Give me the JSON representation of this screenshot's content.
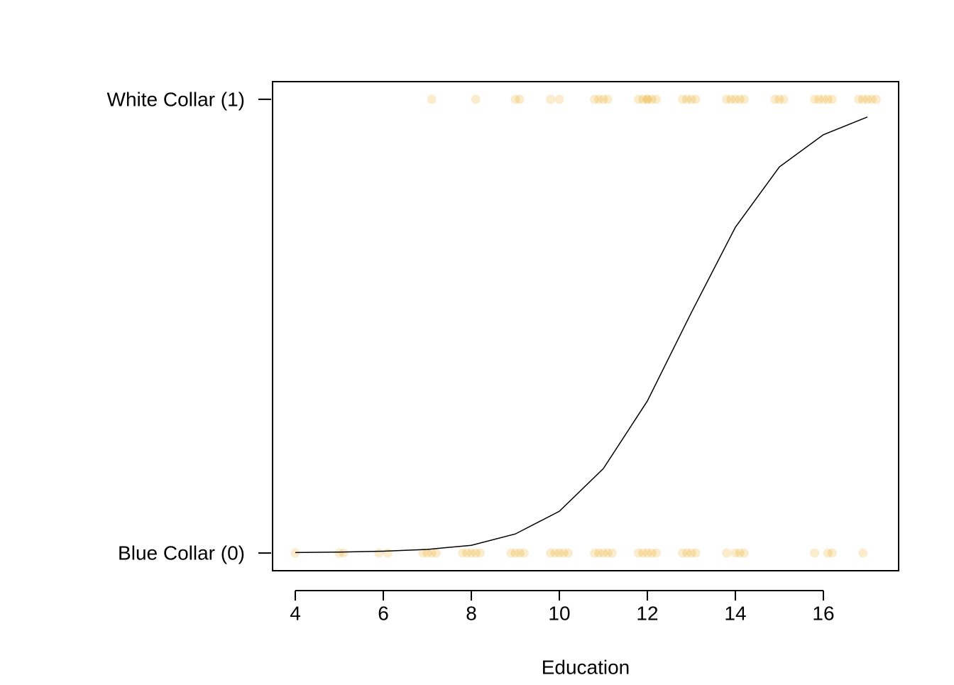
{
  "chart_data": {
    "type": "scatter",
    "xlabel": "Education",
    "xlim": [
      3.484,
      17.71
    ],
    "ylim": [
      -0.039,
      1.039
    ],
    "xticks": [
      4,
      6,
      8,
      10,
      12,
      14,
      16
    ],
    "yticks": [
      {
        "value": 0,
        "label": "Blue Collar (0)"
      },
      {
        "value": 1,
        "label": "White Collar (1)"
      }
    ],
    "series": [
      {
        "type": "scatter",
        "color": "#e69f00",
        "x": [
          7.1,
          8.1,
          9.0,
          9.1,
          9.8,
          10.0,
          10.8,
          10.9,
          11.0,
          11.1,
          11.8,
          11.9,
          12.0,
          12.0,
          12.1,
          12.2,
          12.8,
          12.9,
          13.0,
          13.1,
          13.8,
          13.9,
          14.0,
          14.1,
          14.2,
          14.9,
          15.0,
          15.1,
          15.8,
          15.9,
          16.0,
          16.1,
          16.2,
          16.8,
          16.9,
          17.0,
          17.1,
          17.2,
          4.0,
          5.0,
          5.1,
          5.9,
          6.1,
          6.9,
          7.0,
          7.1,
          7.2,
          7.8,
          7.9,
          8.0,
          8.1,
          8.2,
          8.9,
          9.0,
          9.1,
          9.2,
          9.8,
          9.9,
          10.0,
          10.1,
          10.2,
          10.8,
          10.9,
          11.0,
          11.1,
          11.2,
          11.8,
          11.9,
          12.0,
          12.1,
          12.2,
          12.8,
          12.9,
          13.0,
          13.1,
          13.8,
          14.0,
          14.1,
          14.2,
          15.8,
          16.1,
          16.2,
          16.9
        ],
        "values": [
          1,
          1,
          1,
          1,
          1,
          1,
          1,
          1,
          1,
          1,
          1,
          1,
          1,
          1,
          1,
          1,
          1,
          1,
          1,
          1,
          1,
          1,
          1,
          1,
          1,
          1,
          1,
          1,
          1,
          1,
          1,
          1,
          1,
          1,
          1,
          1,
          1,
          1,
          0,
          0,
          0,
          0,
          0,
          0,
          0,
          0,
          0,
          0,
          0,
          0,
          0,
          0,
          0,
          0,
          0,
          0,
          0,
          0,
          0,
          0,
          0,
          0,
          0,
          0,
          0,
          0,
          0,
          0,
          0,
          0,
          0,
          0,
          0,
          0,
          0,
          0,
          0,
          0,
          0,
          0,
          0,
          0,
          0
        ]
      },
      {
        "type": "line",
        "color": "#000000",
        "x": [
          4,
          5,
          6,
          7,
          8,
          9,
          10,
          11,
          12,
          13,
          14,
          15,
          16,
          17
        ],
        "values": [
          0.001,
          0.002,
          0.004,
          0.008,
          0.017,
          0.042,
          0.092,
          0.186,
          0.335,
          0.53,
          0.718,
          0.851,
          0.922,
          0.961
        ]
      }
    ]
  }
}
